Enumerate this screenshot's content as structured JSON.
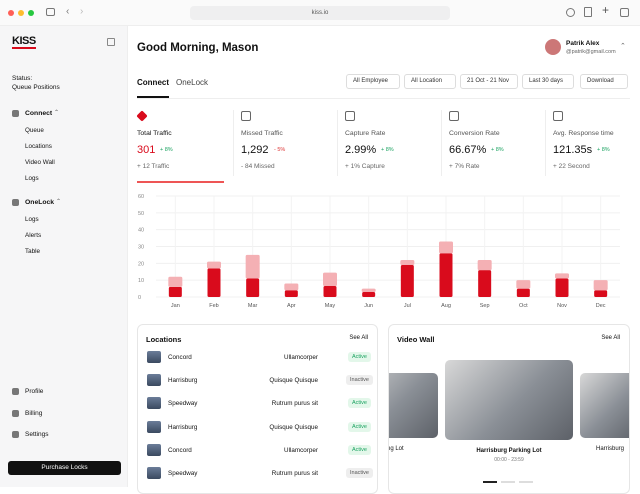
{
  "browser": {
    "url": "kiss.io"
  },
  "sidebar": {
    "logo": "KISS",
    "status_label": "Status:",
    "status_value": "Queue Positions",
    "groups": [
      {
        "label": "Connect",
        "items": [
          "Queue",
          "Locations",
          "Video Wall",
          "Logs"
        ]
      },
      {
        "label": "OneLock",
        "items": [
          "Logs",
          "Alerts",
          "Table"
        ]
      }
    ],
    "footer": [
      "Profile",
      "Billing",
      "Settings"
    ],
    "button": "Purchase Locks"
  },
  "header": {
    "greeting": "Good Morning, Mason",
    "user_name": "Patrik Alex",
    "user_email": "@patrik@gmail.com"
  },
  "tabs": [
    "Connect",
    "OneLock"
  ],
  "filters": [
    "All Employee",
    "All Location",
    "21 Oct - 21 Nov",
    "Last 30 days",
    "Download"
  ],
  "stats": [
    {
      "label": "Total Traffic",
      "value": "301",
      "change": "+ 8%",
      "note": "+ 12 Traffic"
    },
    {
      "label": "Missed Traffic",
      "value": "1,292",
      "change": "- 5%",
      "note": "- 84 Missed"
    },
    {
      "label": "Capture Rate",
      "value": "2.99%",
      "change": "+ 8%",
      "note": "+ 1% Capture"
    },
    {
      "label": "Conversion Rate",
      "value": "66.67%",
      "change": "+ 8%",
      "note": "+ 7% Rate"
    },
    {
      "label": "Avg. Response time",
      "value": "121.35s",
      "change": "+ 8%",
      "note": "+ 22 Second"
    }
  ],
  "chart_data": {
    "type": "stacked_bar",
    "categories": [
      "Jan",
      "Feb",
      "Mar",
      "Apr",
      "May",
      "Jun",
      "Jul",
      "Aug",
      "Sep",
      "Oct",
      "Nov",
      "Dec"
    ],
    "series": [
      {
        "color": "#d90b1c",
        "values": [
          6,
          17,
          11,
          4,
          6.5,
          3,
          19,
          26,
          16,
          5,
          11,
          4
        ]
      },
      {
        "color": "#f4b0b4",
        "values": [
          6,
          4,
          14,
          4,
          8,
          2,
          3,
          7,
          6,
          5,
          3,
          6
        ]
      }
    ],
    "ylim": [
      0,
      60
    ],
    "yticks": [
      0,
      10,
      20,
      30,
      40,
      50,
      60
    ],
    "grid": true
  },
  "locations": {
    "title": "Locations",
    "link": "See All",
    "rows": [
      [
        "Concord",
        "Ullamcorper",
        "Active"
      ],
      [
        "Harrisburg",
        "Quisque Quisque",
        "Inactive"
      ],
      [
        "Speedway",
        "Rutrum purus sit",
        "Active"
      ],
      [
        "Harrisburg",
        "Quisque Quisque",
        "Active"
      ],
      [
        "Concord",
        "Ullamcorper",
        "Active"
      ],
      [
        "Speedway",
        "Rutrum purus sit",
        "Inactive"
      ]
    ]
  },
  "video_wall": {
    "title": "Video Wall",
    "link": "See All",
    "cards": [
      {
        "name": "Parking Lot"
      },
      {
        "name": "Harrisburg Parking Lot",
        "time": "00:00 - 23:59"
      },
      {
        "name": "Harrisburg"
      }
    ]
  }
}
